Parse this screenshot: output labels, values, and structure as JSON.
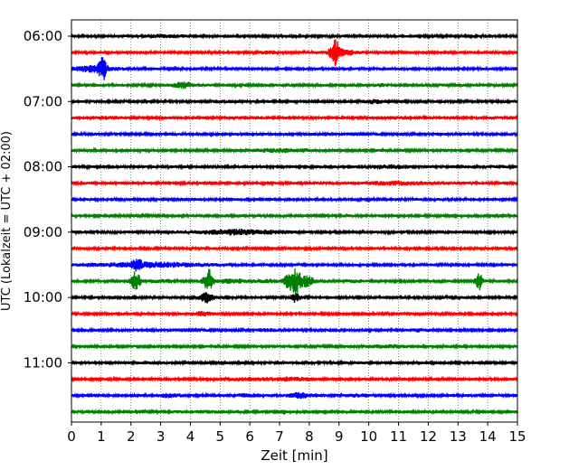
{
  "chart_data": {
    "type": "line",
    "xlabel": "Zeit  [min]",
    "ylabel": "UTC (Lokalzeit = UTC + 02:00)",
    "xlim": [
      0,
      15
    ],
    "x_ticks": [
      "0",
      "1",
      "2",
      "3",
      "4",
      "5",
      "6",
      "7",
      "8",
      "9",
      "10",
      "11",
      "12",
      "13",
      "14",
      "15"
    ],
    "y_ticks": [
      "06:00",
      "07:00",
      "08:00",
      "09:00",
      "10:00",
      "11:00"
    ],
    "row_minutes": 15,
    "start_time": "06:00",
    "grid": "vertical dotted lines at each minute",
    "series_colors": [
      "#000000",
      "#ff0000",
      "#0000ff",
      "#008000"
    ],
    "traces": [
      {
        "start": "06:00",
        "color": "#000000",
        "events": [
          [
            3.1,
            1.6,
            0.6
          ]
        ]
      },
      {
        "start": "06:15",
        "color": "#ff0000",
        "events": [
          [
            8.85,
            10,
            0.15
          ],
          [
            9.2,
            2.5,
            0.4
          ],
          [
            6.6,
            1.5,
            0.3
          ]
        ]
      },
      {
        "start": "06:30",
        "color": "#0000ff",
        "events": [
          [
            1.05,
            8,
            0.12
          ],
          [
            0.7,
            3,
            0.5
          ],
          [
            1.5,
            1.5,
            0.3
          ]
        ]
      },
      {
        "start": "06:45",
        "color": "#008000",
        "events": [
          [
            3.75,
            3,
            0.3
          ],
          [
            10.4,
            1.5,
            0.2
          ]
        ]
      },
      {
        "start": "07:00",
        "color": "#000000",
        "events": [
          [
            10.2,
            2,
            0.3
          ],
          [
            5.0,
            1.3,
            0.3
          ]
        ]
      },
      {
        "start": "07:15",
        "color": "#ff0000",
        "events": [
          [
            1.2,
            1.5,
            0.4
          ],
          [
            5.8,
            1.4,
            0.4
          ],
          [
            11.0,
            1.5,
            0.2
          ]
        ]
      },
      {
        "start": "07:30",
        "color": "#0000ff",
        "events": [
          [
            14.8,
            1.2,
            0.3
          ]
        ]
      },
      {
        "start": "07:45",
        "color": "#008000",
        "events": [
          [
            7.2,
            1.8,
            1.0
          ]
        ]
      },
      {
        "start": "08:00",
        "color": "#000000",
        "events": [
          [
            10.6,
            1.8,
            1.0
          ],
          [
            13.0,
            1.5,
            0.2
          ],
          [
            14.4,
            1.4,
            0.2
          ]
        ]
      },
      {
        "start": "08:15",
        "color": "#ff0000",
        "events": [
          [
            10.8,
            1.8,
            1.3
          ],
          [
            12.6,
            1.3,
            0.3
          ]
        ]
      },
      {
        "start": "08:30",
        "color": "#0000ff",
        "events": []
      },
      {
        "start": "08:45",
        "color": "#008000",
        "events": [
          [
            5.2,
            1.2,
            0.4
          ]
        ]
      },
      {
        "start": "09:00",
        "color": "#000000",
        "events": [
          [
            5.6,
            2.5,
            1.2
          ],
          [
            7.0,
            1.3,
            0.4
          ]
        ]
      },
      {
        "start": "09:15",
        "color": "#ff0000",
        "events": []
      },
      {
        "start": "09:30",
        "color": "#0000ff",
        "events": [
          [
            2.7,
            2.4,
            1.6
          ],
          [
            2.2,
            4,
            0.15
          ]
        ]
      },
      {
        "start": "09:45",
        "color": "#008000",
        "events": [
          [
            2.15,
            8,
            0.15
          ],
          [
            4.6,
            9,
            0.15
          ],
          [
            7.55,
            9,
            0.18
          ],
          [
            7.3,
            5,
            0.15
          ],
          [
            7.9,
            4,
            0.15
          ],
          [
            8.1,
            2.5,
            0.15
          ],
          [
            13.7,
            7,
            0.12
          ],
          [
            5.4,
            2,
            0.5
          ],
          [
            3.0,
            1.4,
            0.4
          ],
          [
            6.5,
            1.5,
            0.3
          ],
          [
            9.6,
            1.5,
            0.3
          ]
        ]
      },
      {
        "start": "10:00",
        "color": "#000000",
        "events": [
          [
            4.55,
            5,
            0.2
          ],
          [
            7.55,
            4,
            0.15
          ]
        ]
      },
      {
        "start": "10:15",
        "color": "#ff0000",
        "events": [
          [
            4.4,
            2,
            0.3
          ]
        ]
      },
      {
        "start": "10:30",
        "color": "#0000ff",
        "events": [
          [
            6.6,
            1.4,
            0.3
          ],
          [
            11.7,
            1.5,
            0.3
          ]
        ]
      },
      {
        "start": "10:45",
        "color": "#008000",
        "events": [
          [
            10.7,
            1.6,
            0.7
          ]
        ]
      },
      {
        "start": "11:00",
        "color": "#000000",
        "events": [
          [
            2.3,
            1.2,
            0.6
          ],
          [
            9.5,
            1.2,
            0.4
          ]
        ]
      },
      {
        "start": "11:15",
        "color": "#ff0000",
        "events": [
          [
            5.9,
            1.6,
            0.6
          ],
          [
            7.2,
            1.8,
            0.6
          ],
          [
            8.0,
            1.4,
            0.3
          ]
        ]
      },
      {
        "start": "11:30",
        "color": "#0000ff",
        "events": [
          [
            3.3,
            2,
            0.3
          ],
          [
            5.8,
            1.8,
            0.2
          ],
          [
            7.65,
            2.5,
            0.35
          ],
          [
            9.7,
            1.5,
            0.6
          ]
        ]
      },
      {
        "start": "11:45",
        "color": "#008000",
        "events": [
          [
            4.6,
            1.3,
            1.0
          ],
          [
            14.8,
            1.2,
            0.3
          ]
        ]
      }
    ]
  }
}
